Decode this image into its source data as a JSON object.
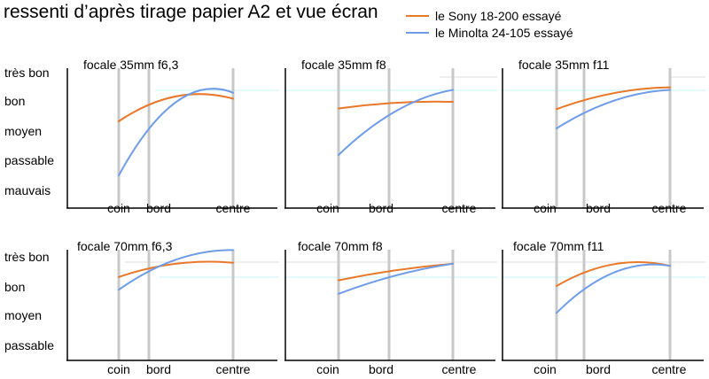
{
  "chart_data": {
    "type": "line",
    "title": "ressenti d’après tirage papier A2 et vue écran",
    "legend": [
      {
        "name": "le Sony 18-200 essayé",
        "color": "#e8782a"
      },
      {
        "name": "le Minolta 24-105 essayé",
        "color": "#6f9ce6"
      }
    ],
    "legend_position": "top-right",
    "x_categories": [
      "coin",
      "bord",
      "centre"
    ],
    "y_categories_top": [
      "très bon",
      "bon",
      "moyen",
      "passable",
      "mauvais"
    ],
    "y_categories_bottom": [
      "très bon",
      "bon",
      "moyen",
      "passable"
    ],
    "panels": [
      {
        "title": "focale 35mm  f6,3",
        "series": [
          {
            "name": "le Sony 18-200 essayé",
            "values": [
              3.0,
              3.55,
              3.75
            ]
          },
          {
            "name": "le Minolta 24-105 essayé",
            "values": [
              1.2,
              2.75,
              3.95
            ]
          }
        ]
      },
      {
        "title": "focale 35mm  f8",
        "series": [
          {
            "name": "le Sony 18-200 essayé",
            "values": [
              3.75,
              3.95,
              4.0
            ]
          },
          {
            "name": "le Minolta 24-105 essayé",
            "values": [
              2.0,
              3.5,
              4.45
            ]
          }
        ]
      },
      {
        "title": "focale 35mm  f11",
        "series": [
          {
            "name": "le Sony 18-200 essayé",
            "values": [
              3.75,
              4.1,
              4.6
            ]
          },
          {
            "name": "le Minolta 24-105 essayé",
            "values": [
              3.0,
              3.6,
              4.5
            ]
          }
        ]
      },
      {
        "title": "focale 70mm  f6,3",
        "series": [
          {
            "name": "le Sony 18-200 essayé",
            "values": [
              2.35,
              2.65,
              2.85
            ]
          },
          {
            "name": "le Minolta 24-105 essayé",
            "values": [
              1.9,
              2.55,
              3.3
            ]
          }
        ]
      },
      {
        "title": "focale 70mm  f8",
        "series": [
          {
            "name": "le Sony 18-200 essayé",
            "values": [
              2.75,
              3.05,
              3.3
            ]
          },
          {
            "name": "le Minolta 24-105 essayé",
            "values": [
              2.3,
              2.85,
              3.3
            ]
          }
        ]
      },
      {
        "title": "focale 70mm  f11",
        "series": [
          {
            "name": "le Sony 18-200 essayé",
            "values": [
              3.0,
              3.2,
              3.3
            ]
          },
          {
            "name": "le Minolta 24-105 essayé",
            "values": [
              2.6,
              2.95,
              3.3
            ]
          }
        ]
      }
    ]
  }
}
